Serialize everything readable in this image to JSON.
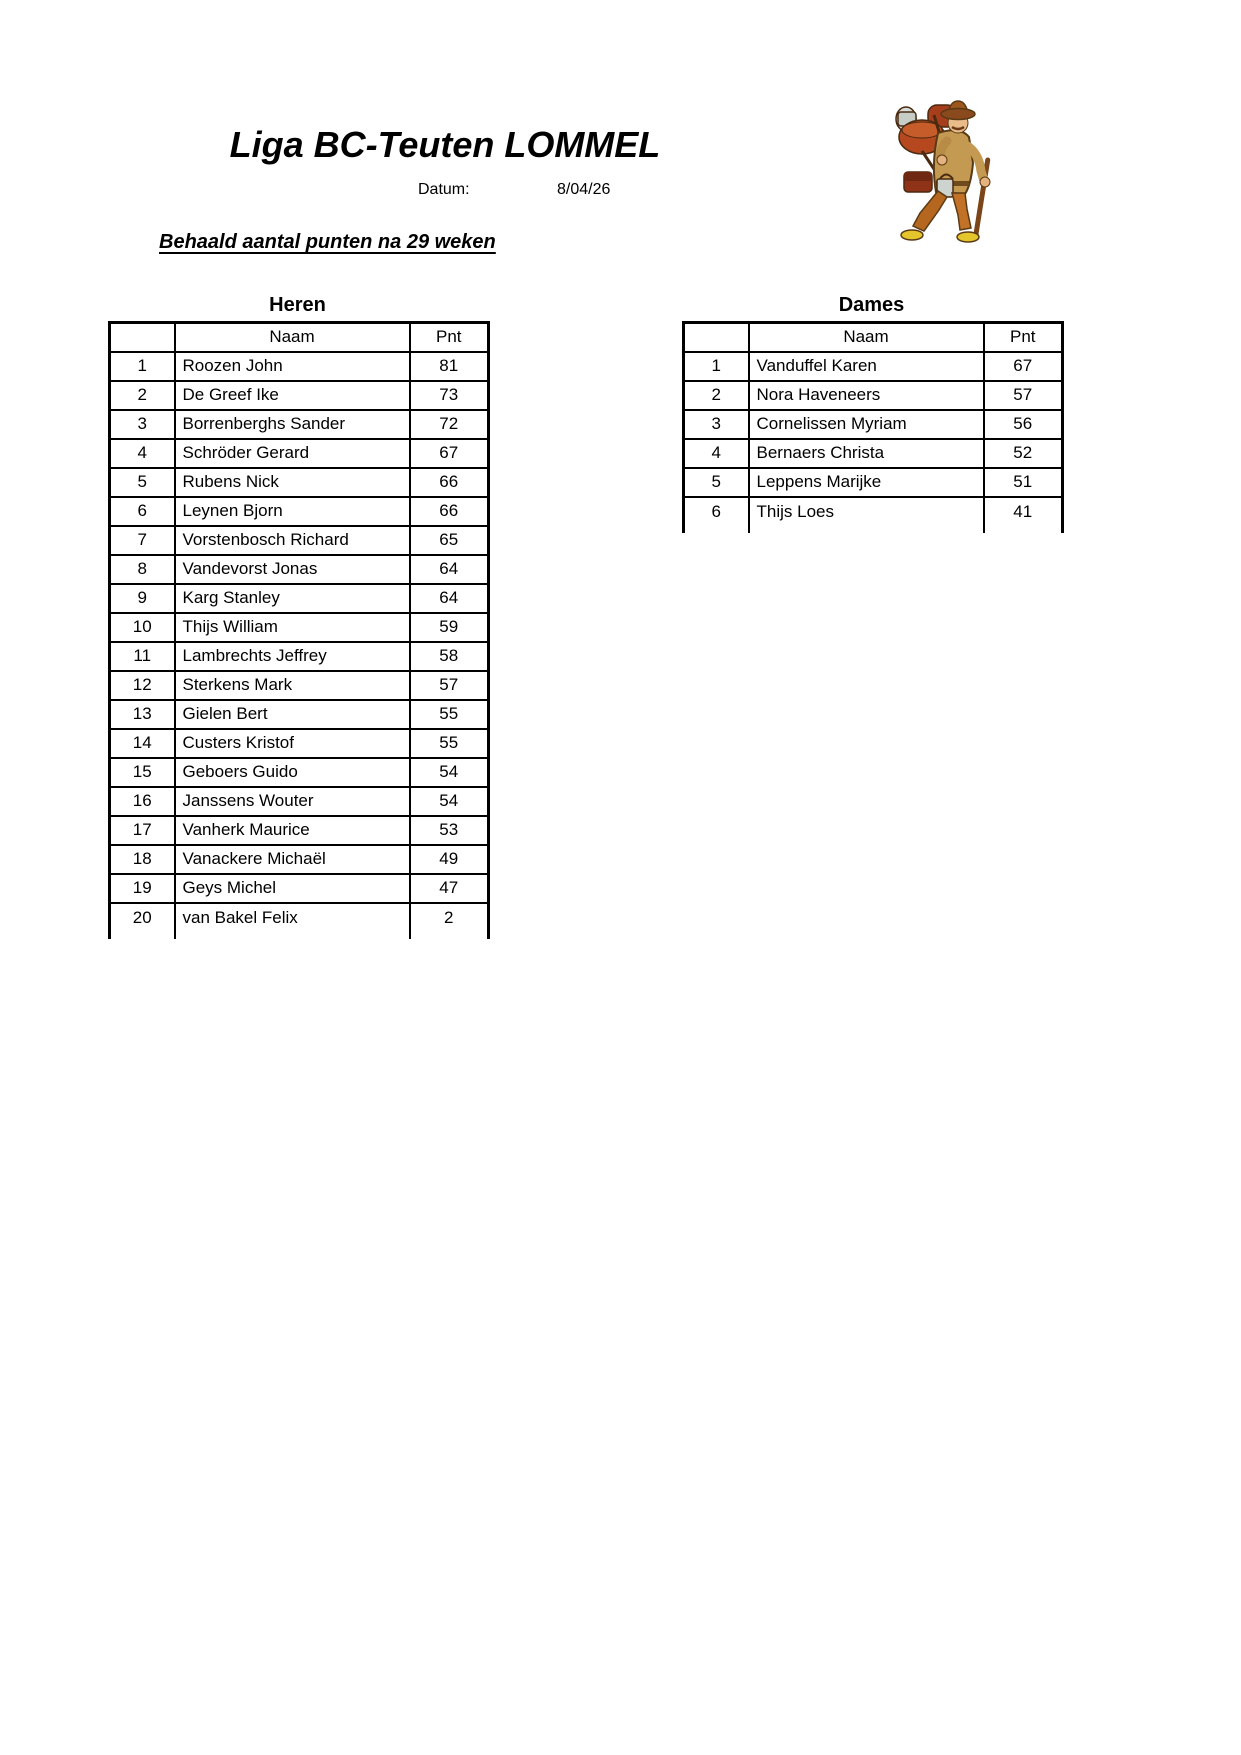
{
  "header": {
    "title": "Liga BC-Teuten LOMMEL",
    "datum_label": "Datum:",
    "datum_value": "8/04/26",
    "subtitle": "Behaald aantal punten na 29 weken"
  },
  "logo": {
    "icon": "teut-peddler-illustration"
  },
  "column_headers": {
    "rank": "",
    "naam": "Naam",
    "pnt": "Pnt"
  },
  "tables": {
    "heren": {
      "title": "Heren",
      "rows": [
        {
          "rank": 1,
          "naam": "Roozen John",
          "pnt": 81
        },
        {
          "rank": 2,
          "naam": "De Greef Ike",
          "pnt": 73
        },
        {
          "rank": 3,
          "naam": "Borrenberghs Sander",
          "pnt": 72
        },
        {
          "rank": 4,
          "naam": "Schröder Gerard",
          "pnt": 67
        },
        {
          "rank": 5,
          "naam": "Rubens Nick",
          "pnt": 66
        },
        {
          "rank": 6,
          "naam": "Leynen Bjorn",
          "pnt": 66
        },
        {
          "rank": 7,
          "naam": "Vorstenbosch Richard",
          "pnt": 65
        },
        {
          "rank": 8,
          "naam": "Vandevorst Jonas",
          "pnt": 64
        },
        {
          "rank": 9,
          "naam": "Karg Stanley",
          "pnt": 64
        },
        {
          "rank": 10,
          "naam": "Thijs William",
          "pnt": 59
        },
        {
          "rank": 11,
          "naam": "Lambrechts Jeffrey",
          "pnt": 58
        },
        {
          "rank": 12,
          "naam": "Sterkens Mark",
          "pnt": 57
        },
        {
          "rank": 13,
          "naam": "Gielen Bert",
          "pnt": 55
        },
        {
          "rank": 14,
          "naam": "Custers Kristof",
          "pnt": 55
        },
        {
          "rank": 15,
          "naam": "Geboers Guido",
          "pnt": 54
        },
        {
          "rank": 16,
          "naam": "Janssens Wouter",
          "pnt": 54
        },
        {
          "rank": 17,
          "naam": "Vanherk Maurice",
          "pnt": 53
        },
        {
          "rank": 18,
          "naam": "Vanackere Michaël",
          "pnt": 49
        },
        {
          "rank": 19,
          "naam": "Geys Michel",
          "pnt": 47
        },
        {
          "rank": 20,
          "naam": "van Bakel Felix",
          "pnt": 2
        }
      ]
    },
    "dames": {
      "title": "Dames",
      "rows": [
        {
          "rank": 1,
          "naam": "Vanduffel Karen",
          "pnt": 67
        },
        {
          "rank": 2,
          "naam": "Nora Haveneers",
          "pnt": 57
        },
        {
          "rank": 3,
          "naam": "Cornelissen Myriam",
          "pnt": 56
        },
        {
          "rank": 4,
          "naam": "Bernaers Christa",
          "pnt": 52
        },
        {
          "rank": 5,
          "naam": "Leppens Marijke",
          "pnt": 51
        },
        {
          "rank": 6,
          "naam": "Thijs Loes",
          "pnt": 41
        }
      ]
    }
  },
  "colors": {
    "text": "#000000",
    "border": "#000000",
    "background": "#ffffff"
  }
}
